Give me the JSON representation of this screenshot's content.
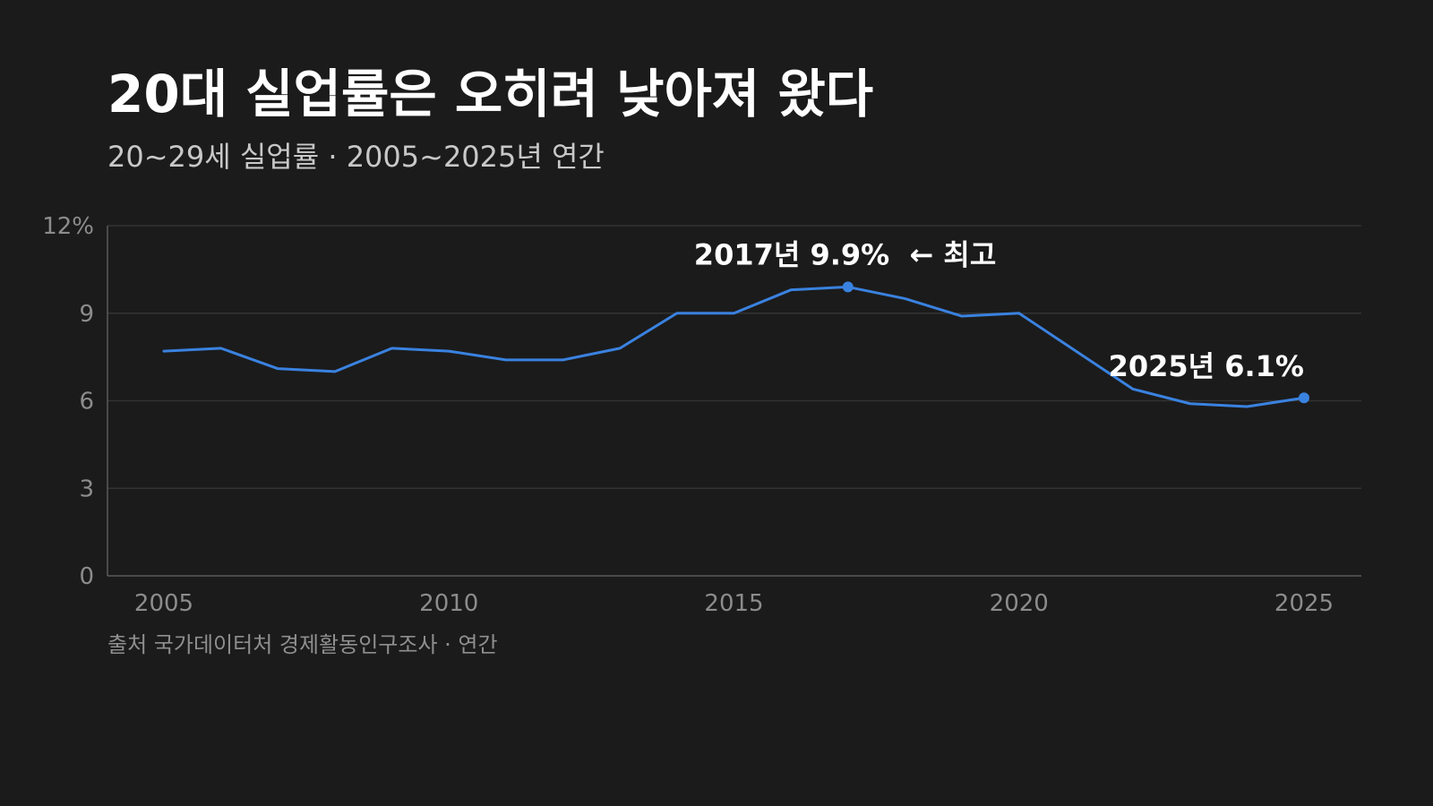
{
  "title": "20대 실업률은 오히려 낮아져 왔다",
  "subtitle": "20~29세 실업률 · 2005~2025년 연간",
  "source": "출처 국가데이터처 경제활동인구조사 · 연간",
  "colors": {
    "background": "#1b1b1b",
    "line": "#3a82e0",
    "grid": "#333333",
    "axis": "#5a5a5a"
  },
  "chart_data": {
    "type": "line",
    "x": [
      2005,
      2006,
      2007,
      2008,
      2009,
      2010,
      2011,
      2012,
      2013,
      2014,
      2015,
      2016,
      2017,
      2018,
      2019,
      2020,
      2021,
      2022,
      2023,
      2024,
      2025
    ],
    "series": [
      {
        "values": [
          7.7,
          7.8,
          7.1,
          7.0,
          7.8,
          7.7,
          7.4,
          7.4,
          7.8,
          9.0,
          9.0,
          9.8,
          9.9,
          9.5,
          8.9,
          9.0,
          7.7,
          6.4,
          5.9,
          5.8,
          6.1
        ]
      }
    ],
    "xlim": [
      2005,
      2025
    ],
    "ylim": [
      0,
      12
    ],
    "x_ticks": [
      2005,
      2010,
      2015,
      2020,
      2025
    ],
    "x_tick_labels": [
      "2005",
      "2010",
      "2015",
      "2020",
      "2025"
    ],
    "y_ticks": [
      0,
      3,
      6,
      9,
      12
    ],
    "y_tick_labels": [
      "0",
      "3",
      "6",
      "9",
      "12%"
    ],
    "grid": true,
    "annotations": [
      {
        "x": 2017,
        "y": 9.9,
        "text": "2017년 9.9%  ← 최고"
      },
      {
        "x": 2025,
        "y": 6.1,
        "text": "2025년 6.1%"
      }
    ]
  }
}
